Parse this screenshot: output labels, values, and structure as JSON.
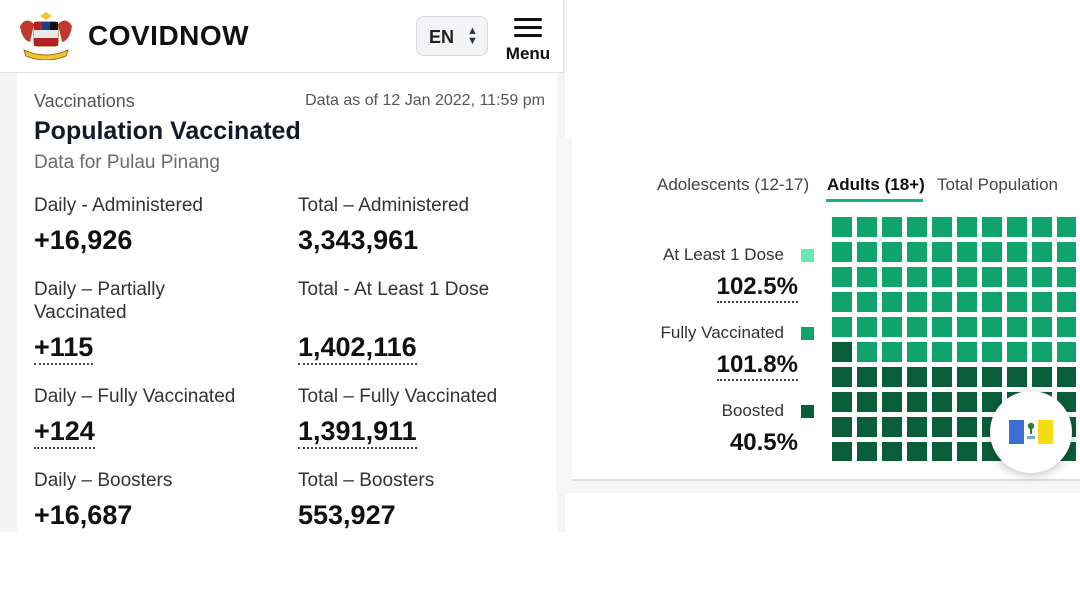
{
  "header": {
    "brand": "COVIDNOW",
    "lang": "EN",
    "menu_label": "Menu"
  },
  "card": {
    "section": "Vaccinations",
    "as_of": "Data as of 12 Jan 2022, 11:59 pm",
    "title": "Population Vaccinated",
    "subtitle": "Data for Pulau Pinang",
    "stats": [
      {
        "label": "Daily - Administered",
        "value": "+16,926"
      },
      {
        "label": "Total – Administered",
        "value": "3,343,961"
      },
      {
        "label": "Daily – Partially\nVaccinated",
        "value": "+115"
      },
      {
        "label": "Total - At Least 1 Dose",
        "value": "1,402,116"
      },
      {
        "label": "Daily – Fully Vaccinated",
        "value": "+124"
      },
      {
        "label": "Total – Fully Vaccinated",
        "value": "1,391,911"
      },
      {
        "label": "Daily – Boosters",
        "value": "+16,687"
      },
      {
        "label": "Total – Boosters",
        "value": "553,927"
      }
    ]
  },
  "vax_chart": {
    "tabs": [
      "Adolescents (12-17)",
      "Adults (18+)",
      "Total Population"
    ],
    "active_tab": "Adults (18+)",
    "legend": [
      {
        "label": "At Least 1 Dose",
        "value": "102.5%",
        "color": "#6ee7b7"
      },
      {
        "label": "Fully Vaccinated",
        "value": "101.8%",
        "color": "#10a36b"
      },
      {
        "label": "Boosted",
        "value": "40.5%",
        "color": "#0b5e3a"
      }
    ],
    "waffle_colors": {
      "vaccinated": "#10a36b",
      "boosted": "#0b5e3a"
    }
  },
  "chart_data": {
    "type": "waffle",
    "categories": [
      "At Least 1 Dose",
      "Fully Vaccinated",
      "Boosted"
    ],
    "values": [
      102.5,
      101.8,
      40.5
    ],
    "unit": "%"
  },
  "state_flag": {
    "icon": "pulau-pinang-flag-icon"
  }
}
